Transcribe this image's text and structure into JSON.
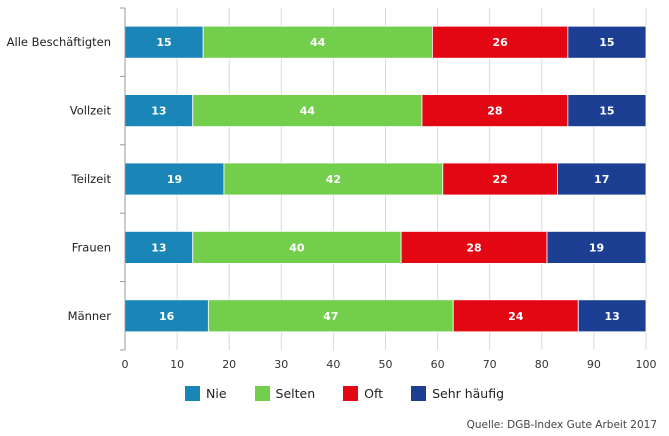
{
  "chart_data": {
    "type": "bar",
    "orientation": "horizontal",
    "stacked": true,
    "categories": [
      "Alle Beschäftigten",
      "Vollzeit",
      "Teilzeit",
      "Frauen",
      "Männer"
    ],
    "series": [
      {
        "name": "Nie",
        "color": "#1a86b8",
        "values": [
          15,
          13,
          19,
          13,
          16
        ]
      },
      {
        "name": "Selten",
        "color": "#72ce4b",
        "values": [
          44,
          44,
          42,
          40,
          47
        ]
      },
      {
        "name": "Oft",
        "color": "#e30613",
        "values": [
          26,
          28,
          22,
          28,
          24
        ]
      },
      {
        "name": "Sehr häufig",
        "color": "#1c3f94",
        "values": [
          15,
          15,
          17,
          19,
          13
        ]
      }
    ],
    "xlim": [
      0,
      100
    ],
    "xticks": [
      0,
      10,
      20,
      30,
      40,
      50,
      60,
      70,
      80,
      90,
      100
    ],
    "grid": true,
    "legend_position": "bottom"
  },
  "source": "Quelle: DGB-Index Gute Arbeit 2017"
}
